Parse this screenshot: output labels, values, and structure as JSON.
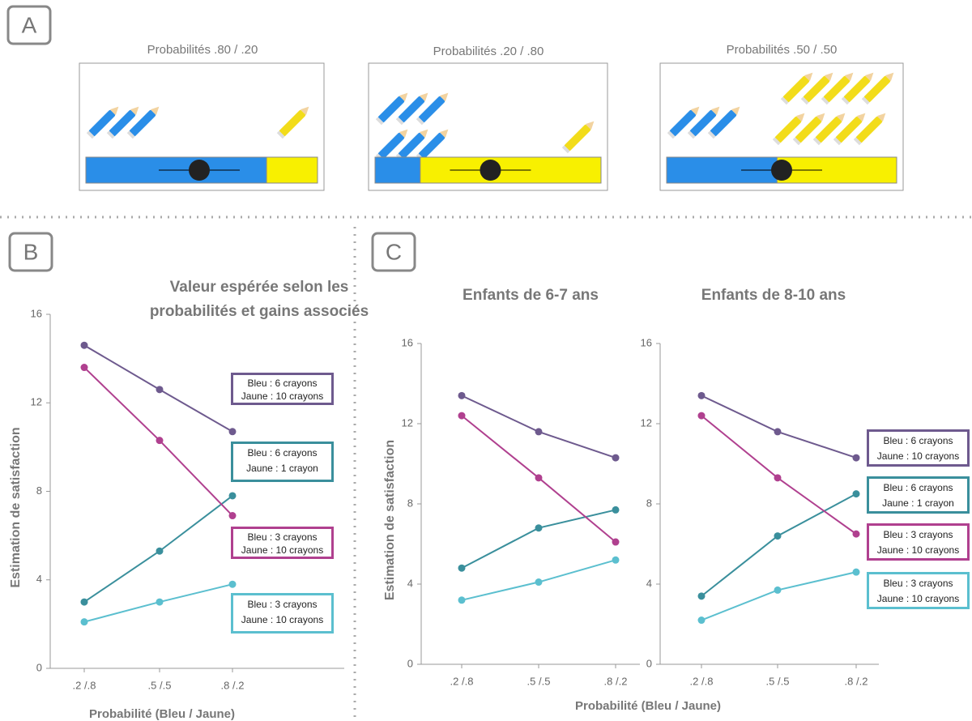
{
  "panels": {
    "a": {
      "letter": "A",
      "titles": [
        "Probabilités .80 / .20",
        "Probabilités .20 / .80",
        "Probabilités .50 / .50"
      ]
    },
    "b": {
      "letter": "B"
    },
    "c": {
      "letter": "C"
    }
  },
  "chart_data": [
    {
      "type": "line",
      "title": "Valeur espérée selon les\nprobabilités et gains associés",
      "xlabel": "Probabilité (Bleu / Jaune)",
      "ylabel": "Estimation de satisfaction",
      "categories": [
        ".2 /.8",
        ".5 /.5",
        ".8 /.2"
      ],
      "ylim": [
        0,
        16
      ],
      "yticks": [
        0,
        4,
        8,
        12,
        16
      ],
      "legend": true,
      "series": [
        {
          "name": "Bleu : 6 crayons\nJaune : 10 crayons",
          "color": "#6e5a8e",
          "values": [
            14.6,
            12.6,
            10.7
          ]
        },
        {
          "name": "Bleu : 6 crayons\nJaune : 1 crayon",
          "color": "#3a8f9c",
          "values": [
            3.0,
            5.3,
            7.8
          ]
        },
        {
          "name": "Bleu : 3 crayons\nJaune : 10 crayons",
          "color": "#b0408f",
          "values": [
            13.6,
            10.3,
            6.9
          ]
        },
        {
          "name": "Bleu : 3 crayons\nJaune : 10 crayons",
          "color": "#5bbfcf",
          "values": [
            2.1,
            3.0,
            3.8
          ]
        }
      ]
    },
    {
      "type": "line",
      "title": "Enfants de 6-7 ans",
      "xlabel": "Probabilité (Bleu / Jaune)",
      "ylabel": "Estimation de satisfaction",
      "categories": [
        ".2 /.8",
        ".5 /.5",
        ".8 /.2"
      ],
      "ylim": [
        0,
        16
      ],
      "yticks": [
        0,
        4,
        8,
        12,
        16
      ],
      "legend": false,
      "series": [
        {
          "color": "#6e5a8e",
          "values": [
            13.4,
            11.6,
            10.3
          ]
        },
        {
          "color": "#3a8f9c",
          "values": [
            4.8,
            6.8,
            7.7
          ]
        },
        {
          "color": "#b0408f",
          "values": [
            12.4,
            9.3,
            6.1
          ]
        },
        {
          "color": "#5bbfcf",
          "values": [
            3.2,
            4.1,
            5.2
          ]
        }
      ]
    },
    {
      "type": "line",
      "title": "Enfants de 8-10 ans",
      "categories": [
        ".2 /.8",
        ".5 /.5",
        ".8 /.2"
      ],
      "ylim": [
        0,
        16
      ],
      "yticks": [
        0,
        4,
        8,
        12,
        16
      ],
      "legend": true,
      "series": [
        {
          "name": "Bleu : 6 crayons\nJaune : 10 crayons",
          "color": "#6e5a8e",
          "values": [
            13.4,
            11.6,
            10.3
          ]
        },
        {
          "name": "Bleu : 6 crayons\nJaune : 1 crayon",
          "color": "#3a8f9c",
          "values": [
            3.4,
            6.4,
            8.5
          ]
        },
        {
          "name": "Bleu : 3 crayons\nJaune : 10 crayons",
          "color": "#b0408f",
          "values": [
            12.4,
            9.3,
            6.5
          ]
        },
        {
          "name": "Bleu : 3 crayons\nJaune : 10 crayons",
          "color": "#5bbfcf",
          "values": [
            2.2,
            3.7,
            4.6
          ]
        }
      ]
    }
  ]
}
